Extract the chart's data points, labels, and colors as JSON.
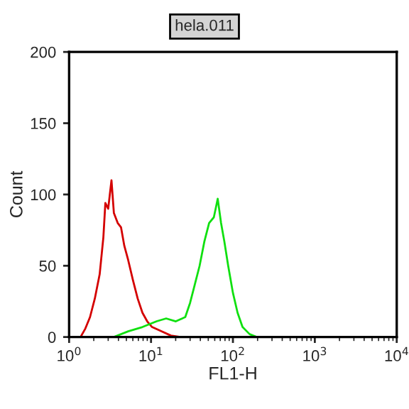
{
  "chart_data": {
    "type": "line",
    "title": "hela.011",
    "xlabel": "FL1-H",
    "ylabel": "Count",
    "log": "x",
    "xlim": [
      1,
      10000
    ],
    "ylim": [
      0,
      200
    ],
    "xticks": [
      {
        "value": 1,
        "label": "10$^{0}$"
      },
      {
        "value": 10,
        "label": "10$^{1}$"
      },
      {
        "value": 100,
        "label": "10$^{2}$"
      },
      {
        "value": 1000,
        "label": "10$^{3}$"
      },
      {
        "value": 10000,
        "label": "10$^{4}$"
      }
    ],
    "yticks": [
      0,
      50,
      100,
      150,
      200
    ],
    "grid": false,
    "legend": false,
    "marker": "none",
    "line_style": "solid",
    "series": [
      {
        "color": "#d40000",
        "x": [
          1.0,
          1.38,
          1.58,
          1.8,
          2.06,
          2.36,
          2.62,
          2.77,
          3.0,
          3.29,
          3.52,
          3.92,
          4.3,
          4.72,
          5.26,
          6.01,
          6.87,
          7.86,
          8.98,
          10.3,
          13.4,
          17.5,
          22.9
        ],
        "values": [
          0,
          0,
          6,
          14,
          27,
          44,
          70,
          94,
          90,
          110,
          87,
          80,
          77,
          64,
          54,
          40,
          27,
          17,
          11,
          7,
          4,
          1,
          0
        ]
      },
      {
        "color": "#10e010",
        "x": [
          3.52,
          5.26,
          7.86,
          11.7,
          15.3,
          20.1,
          26.2,
          30.0,
          34.3,
          39.2,
          44.8,
          51.2,
          58.5,
          65.2,
          71.6,
          78.6,
          87.5,
          100,
          114,
          131,
          160,
          195
        ],
        "values": [
          0,
          4,
          7,
          11,
          13,
          11,
          14,
          24,
          37,
          50,
          67,
          80,
          84,
          97,
          80,
          67,
          50,
          31,
          17,
          7,
          2,
          0
        ]
      }
    ]
  }
}
